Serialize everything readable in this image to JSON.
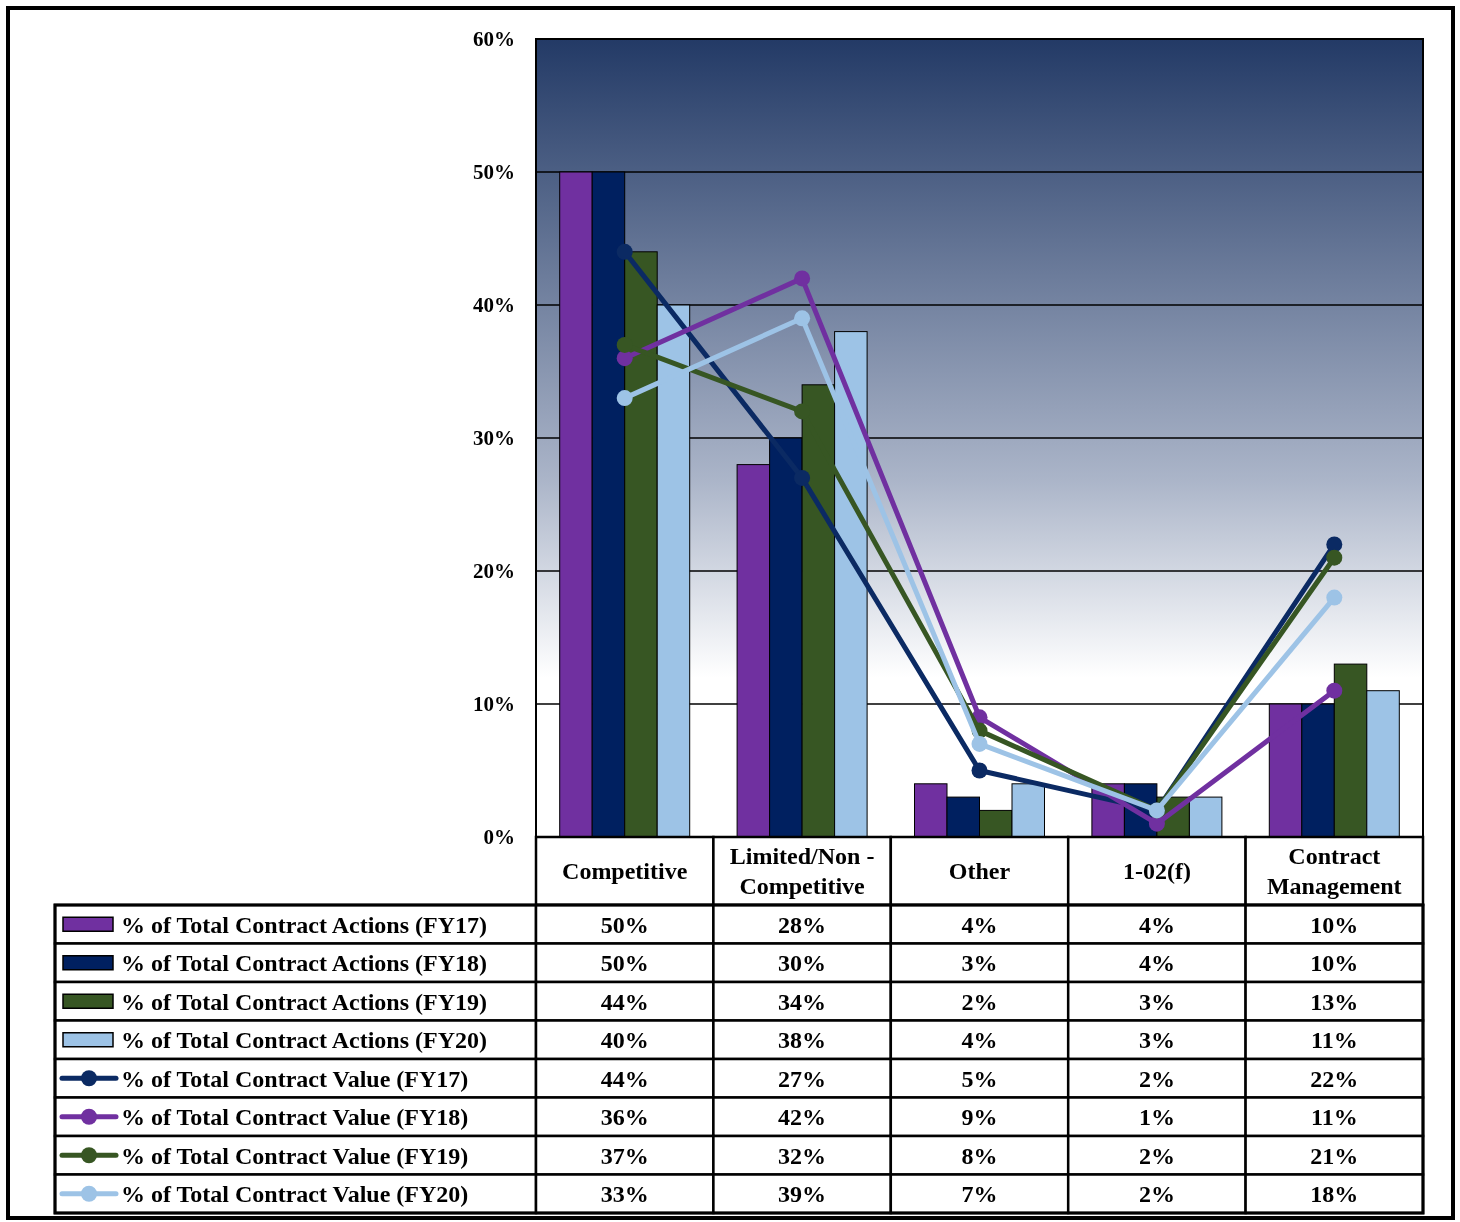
{
  "chart_data": {
    "type": "bar",
    "categories": [
      "Competitive",
      "Limited/Non - Competitive",
      "Other",
      "1-02(f)",
      "Contract Management"
    ],
    "ylim": [
      0,
      60
    ],
    "yticks": [
      {
        "value": 0,
        "label": "0%"
      },
      {
        "value": 10,
        "label": "10%"
      },
      {
        "value": 20,
        "label": "20%"
      },
      {
        "value": 30,
        "label": "30%"
      },
      {
        "value": 40,
        "label": "40%"
      },
      {
        "value": 50,
        "label": "50%"
      },
      {
        "value": 60,
        "label": "60%"
      }
    ],
    "grid": "y",
    "legend": "bottom",
    "marker": "circle",
    "line_style": "solid",
    "series": [
      {
        "name": "% of Total Contract Actions (FY17)",
        "color": "#7030a0",
        "values": [
          50,
          28,
          4,
          4,
          10
        ],
        "value_labels": [
          "50%",
          "28%",
          "4%",
          "4%",
          "10%"
        ]
      },
      {
        "name": "% of Total Contract Actions (FY18)",
        "color": "#002060",
        "values": [
          50,
          30,
          3,
          4,
          10
        ],
        "value_labels": [
          "50%",
          "30%",
          "3%",
          "4%",
          "10%"
        ]
      },
      {
        "name": "% of Total Contract Actions (FY19)",
        "color": "#375623",
        "values": [
          44,
          34,
          2,
          3,
          13
        ],
        "value_labels": [
          "44%",
          "34%",
          "2%",
          "3%",
          "13%"
        ]
      },
      {
        "name": "% of Total Contract Actions (FY20)",
        "color": "#9dc3e6",
        "values": [
          40,
          38,
          4,
          3,
          11
        ],
        "value_labels": [
          "40%",
          "38%",
          "4%",
          "3%",
          "11%"
        ]
      },
      {
        "name": "% of Total Contract Value (FY17)",
        "type": "line",
        "color": "#0b2a63",
        "values": [
          44,
          27,
          5,
          2,
          22
        ],
        "value_labels": [
          "44%",
          "27%",
          "5%",
          "2%",
          "22%"
        ]
      },
      {
        "name": "% of Total Contract Value (FY18)",
        "type": "line",
        "color": "#7030a0",
        "values": [
          36,
          42,
          9,
          1,
          11
        ],
        "value_labels": [
          "36%",
          "42%",
          "9%",
          "1%",
          "11%"
        ]
      },
      {
        "name": "% of Total Contract Value (FY19)",
        "type": "line",
        "color": "#375623",
        "values": [
          37,
          32,
          8,
          2,
          21
        ],
        "value_labels": [
          "37%",
          "32%",
          "8%",
          "2%",
          "21%"
        ]
      },
      {
        "name": "% of Total Contract Value (FY20)",
        "type": "line",
        "color": "#9dc3e6",
        "values": [
          33,
          39,
          7,
          2,
          18
        ],
        "value_labels": [
          "33%",
          "39%",
          "7%",
          "2%",
          "18%"
        ]
      }
    ]
  }
}
